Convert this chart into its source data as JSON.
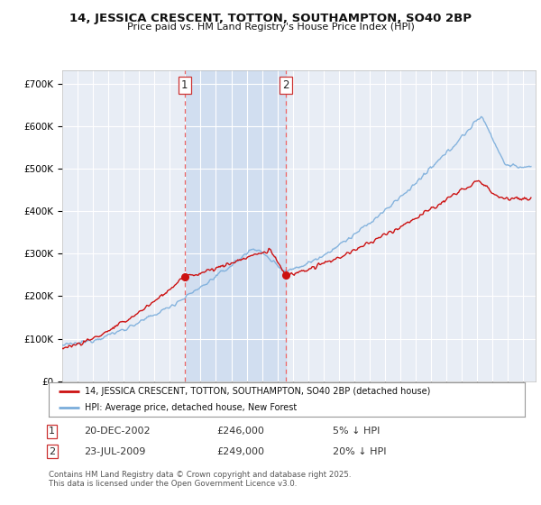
{
  "title": "14, JESSICA CRESCENT, TOTTON, SOUTHAMPTON, SO40 2BP",
  "subtitle": "Price paid vs. HM Land Registry's House Price Index (HPI)",
  "ylim": [
    0,
    730000
  ],
  "yticks": [
    0,
    100000,
    200000,
    300000,
    400000,
    500000,
    600000,
    700000
  ],
  "ytick_labels": [
    "£0",
    "£100K",
    "£200K",
    "£300K",
    "£400K",
    "£500K",
    "£600K",
    "£700K"
  ],
  "fig_bg_color": "#ffffff",
  "plot_bg_color": "#e8edf5",
  "grid_color": "#ffffff",
  "transaction1": {
    "date": "20-DEC-2002",
    "price": 246000,
    "label": "1",
    "pct": "5% ↓ HPI"
  },
  "transaction2": {
    "date": "23-JUL-2009",
    "price": 249000,
    "label": "2",
    "pct": "20% ↓ HPI"
  },
  "legend_label_red": "14, JESSICA CRESCENT, TOTTON, SOUTHAMPTON, SO40 2BP (detached house)",
  "legend_label_blue": "HPI: Average price, detached house, New Forest",
  "footer": "Contains HM Land Registry data © Crown copyright and database right 2025.\nThis data is licensed under the Open Government Licence v3.0.",
  "hpi_color": "#7aaddb",
  "price_color": "#cc1111",
  "vline_color": "#ee6666",
  "marker1_x": 2002.97,
  "marker1_y": 246000,
  "marker2_x": 2009.55,
  "marker2_y": 249000,
  "xmin": 1995,
  "xmax": 2025.8
}
